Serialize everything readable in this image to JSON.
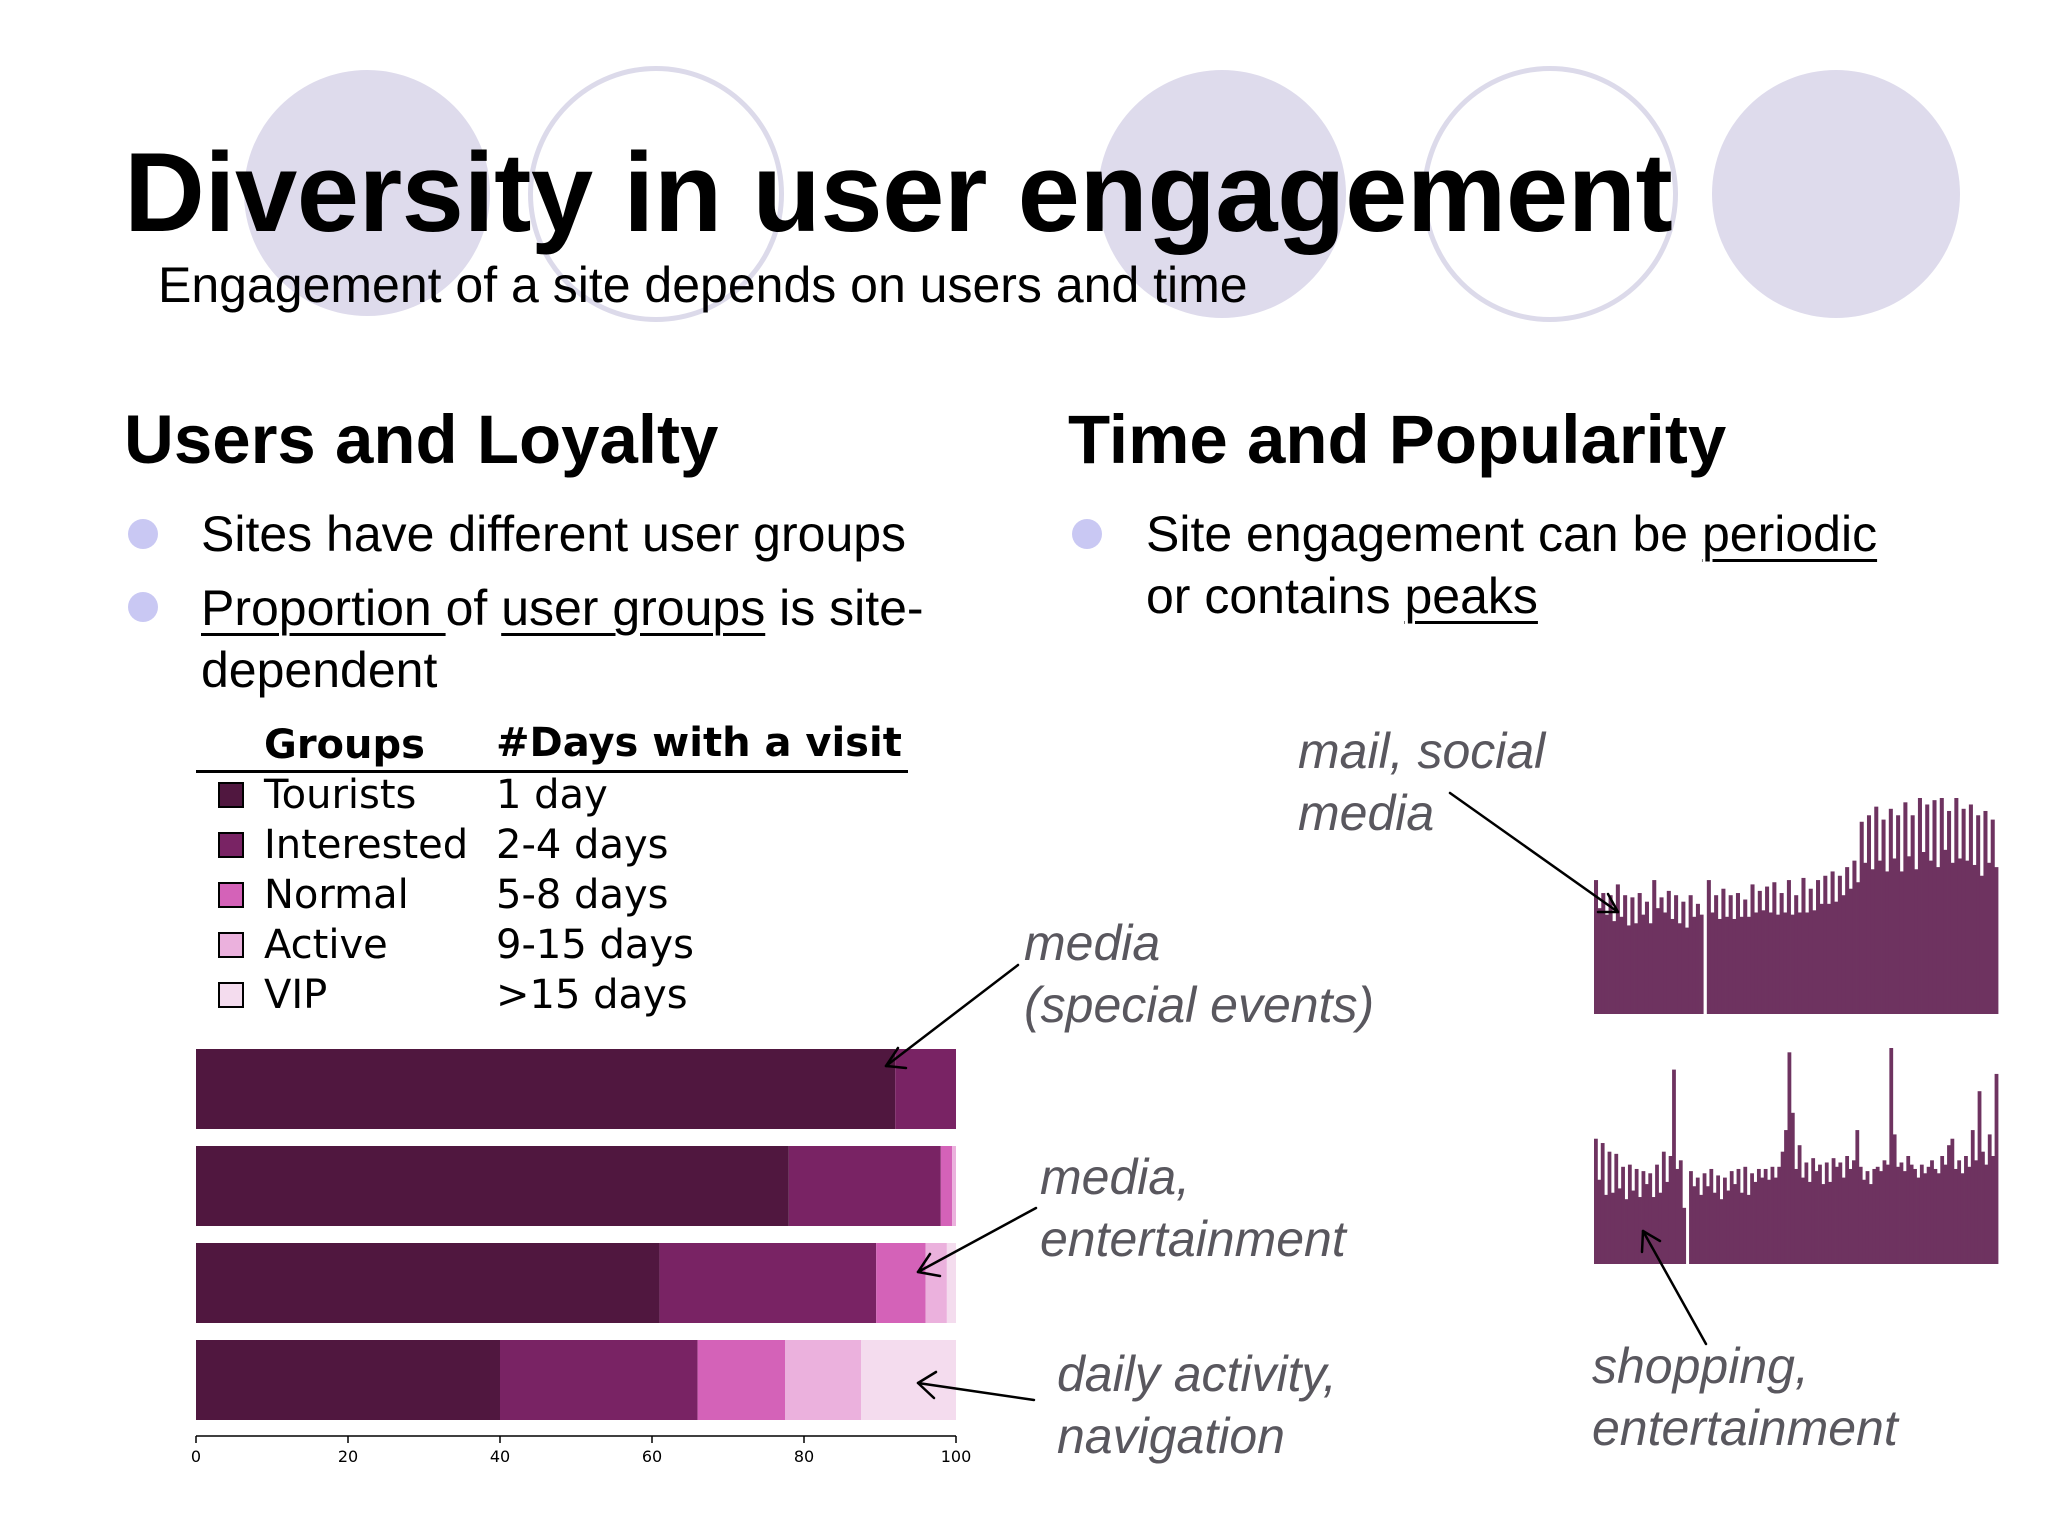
{
  "slide": {
    "title": "Diversity in user engagement",
    "subtitle": "Engagement of a site depends on users and time"
  },
  "left_column": {
    "heading": "Users and Loyalty",
    "bullets": [
      {
        "lines": [
          [
            {
              "text": "Sites have different user groups",
              "underline": false
            }
          ]
        ]
      },
      {
        "lines": [
          [
            {
              "text": "Proportion ",
              "underline": true
            },
            {
              "text": "of ",
              "underline": false
            },
            {
              "text": "user groups",
              "underline": true
            },
            {
              "text": " is site-",
              "underline": false
            }
          ],
          [
            {
              "text": "dependent",
              "underline": false
            }
          ]
        ]
      }
    ]
  },
  "right_column": {
    "heading": "Time and Popularity",
    "bullets": [
      {
        "lines": [
          [
            {
              "text": "Site engagement can be ",
              "underline": false
            },
            {
              "text": "periodic",
              "underline": true
            }
          ],
          [
            {
              "text": "or contains ",
              "underline": false
            },
            {
              "text": "peaks",
              "underline": true
            }
          ]
        ]
      }
    ]
  },
  "legend": {
    "groups_header": "Groups",
    "days_header": "#Days with a visit",
    "rows": [
      {
        "group": "Tourists",
        "days": "1 day",
        "color": "#50173f"
      },
      {
        "group": "Interested",
        "days": "2-4 days",
        "color": "#792364"
      },
      {
        "group": "Normal",
        "days": "5-8 days",
        "color": "#d462b8"
      },
      {
        "group": "Active",
        "days": "9-15 days",
        "color": "#ebb1dd"
      },
      {
        "group": "VIP",
        "days": ">15 days",
        "color": "#f4dcee"
      }
    ]
  },
  "annotations": {
    "mail_social": [
      "mail, social",
      "media"
    ],
    "media_special": [
      "media",
      "(special events)"
    ],
    "media_entertainment": [
      "media,",
      "entertainment"
    ],
    "daily_activity": [
      "daily activity,",
      "navigation"
    ],
    "shopping": [
      "shopping,",
      "entertainment"
    ]
  },
  "chart_data": [
    {
      "type": "bar",
      "orientation": "horizontal",
      "stacked": true,
      "categories": [
        "media (special events)",
        "",
        "media, entertainment",
        "daily activity, navigation"
      ],
      "series": [
        {
          "name": "Tourists",
          "values": [
            92,
            78,
            61,
            40
          ]
        },
        {
          "name": "Interested",
          "values": [
            8,
            20,
            28.5,
            26
          ]
        },
        {
          "name": "Normal",
          "values": [
            0,
            1.5,
            6.5,
            11.5
          ]
        },
        {
          "name": "Active",
          "values": [
            0,
            0.5,
            2.8,
            10
          ]
        },
        {
          "name": "VIP",
          "values": [
            0,
            0,
            1.2,
            12.5
          ]
        }
      ],
      "xlim": [
        0,
        100
      ],
      "x_ticks": [
        "0",
        "20",
        "40",
        "60",
        "80",
        "100"
      ],
      "colors": [
        "#50173f",
        "#792364",
        "#d462b8",
        "#ebb1dd",
        "#f4dcee"
      ]
    },
    {
      "type": "bar",
      "title": "",
      "description_label": "mail, social media",
      "color": "#6e3360",
      "pattern": "periodic",
      "values": [
        62,
        49,
        56,
        46,
        55,
        43,
        60,
        45,
        55,
        41,
        54,
        42,
        56,
        46,
        52,
        42,
        62,
        49,
        54,
        47,
        57,
        44,
        55,
        42,
        52,
        40,
        55,
        45,
        51,
        46,
        0,
        62,
        47,
        55,
        44,
        58,
        45,
        55,
        44,
        56,
        45,
        53,
        45,
        60,
        47,
        57,
        48,
        59,
        47,
        61,
        46,
        56,
        47,
        62,
        46,
        55,
        47,
        63,
        47,
        58,
        48,
        62,
        51,
        64,
        51,
        66,
        52,
        64,
        55,
        68,
        58,
        71,
        61,
        89,
        70,
        92,
        67,
        96,
        71,
        90,
        66,
        95,
        72,
        92,
        66,
        98,
        73,
        92,
        67,
        100,
        75,
        97,
        71,
        99,
        68,
        100,
        76,
        94,
        70,
        100,
        72,
        95,
        71,
        97,
        69,
        92,
        64,
        94,
        70,
        90,
        68
      ]
    },
    {
      "type": "bar",
      "title": "",
      "description_label": "shopping, entertainment",
      "color": "#6e3360",
      "pattern": "peaks",
      "values": [
        58,
        39,
        56,
        32,
        52,
        33,
        51,
        35,
        45,
        30,
        46,
        34,
        44,
        31,
        43,
        37,
        42,
        31,
        46,
        33,
        52,
        38,
        50,
        90,
        44,
        48,
        26,
        0,
        43,
        36,
        40,
        32,
        42,
        36,
        44,
        33,
        41,
        30,
        40,
        34,
        43,
        37,
        44,
        33,
        45,
        32,
        42,
        38,
        44,
        40,
        44,
        39,
        45,
        40,
        45,
        52,
        62,
        98,
        70,
        44,
        55,
        40,
        47,
        38,
        49,
        43,
        46,
        37,
        47,
        38,
        49,
        45,
        47,
        40,
        50,
        44,
        48,
        62,
        45,
        39,
        43,
        37,
        44,
        45,
        43,
        48,
        46,
        100,
        60,
        45,
        47,
        43,
        50,
        46,
        44,
        40,
        46,
        42,
        45,
        48,
        44,
        42,
        50,
        46,
        55,
        58,
        44,
        48,
        42,
        50,
        45,
        62,
        48,
        80,
        52,
        46,
        60,
        50,
        88
      ]
    }
  ]
}
